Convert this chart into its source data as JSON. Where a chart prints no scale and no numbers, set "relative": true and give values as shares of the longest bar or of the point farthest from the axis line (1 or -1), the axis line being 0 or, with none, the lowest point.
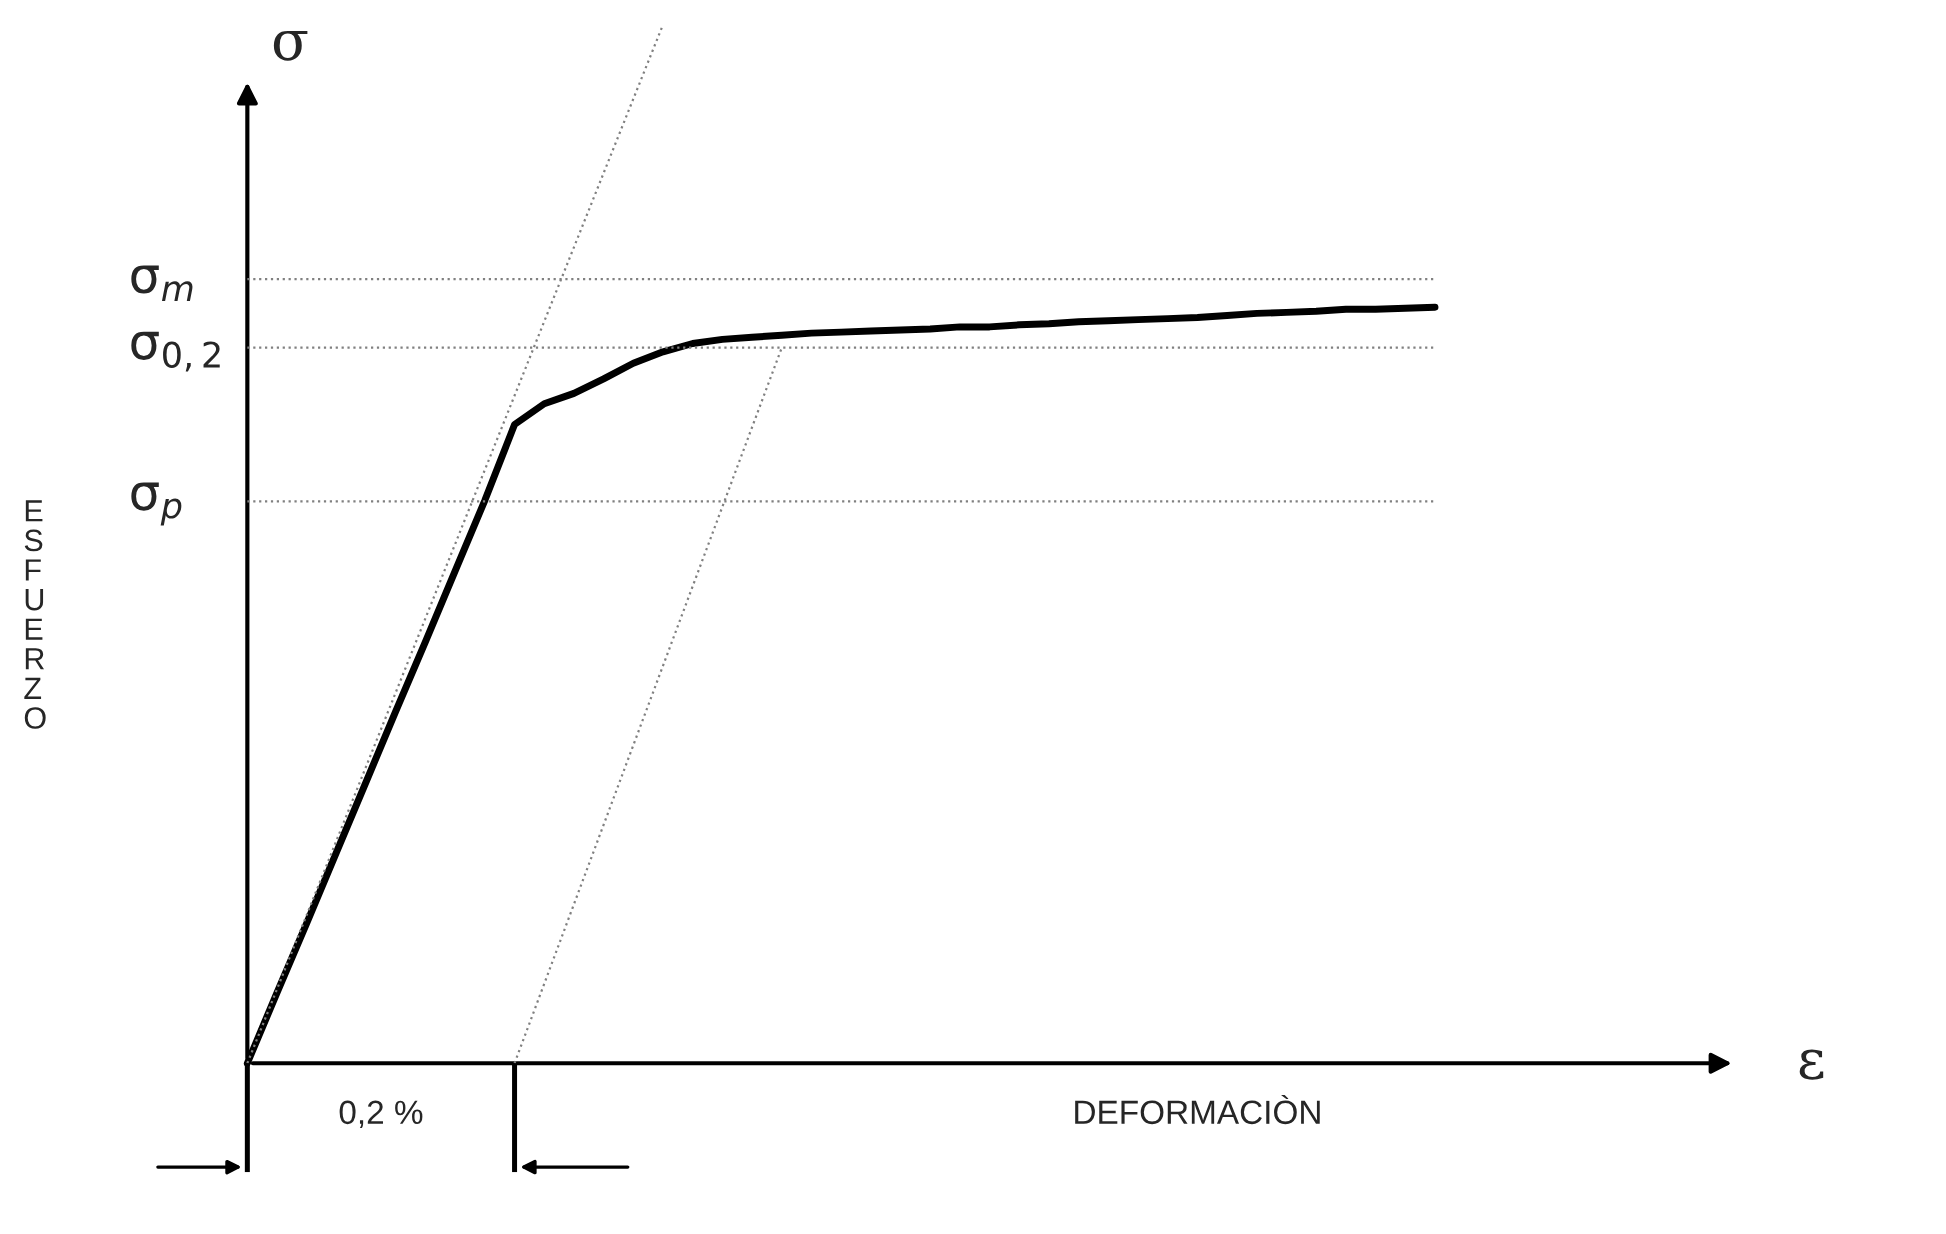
{
  "chart_data": {
    "type": "line",
    "relative": true,
    "marker": "none",
    "categories": [
      null,
      null,
      null,
      null,
      null,
      null,
      null,
      null,
      null,
      null,
      null,
      null,
      null,
      null,
      null,
      null,
      null,
      null,
      null,
      null,
      null,
      null,
      null,
      null,
      null,
      null,
      null,
      null,
      null,
      null,
      null,
      null,
      null,
      null,
      null,
      null,
      null,
      null,
      null,
      null,
      null
    ],
    "series": [
      {
        "color": "#000000",
        "line_style": "solid",
        "values": [
          0,
          0.068,
          0.135,
          0.203,
          0.271,
          0.339,
          0.406,
          0.474,
          0.542,
          0.615,
          0.635,
          0.645,
          0.659,
          0.674,
          0.685,
          0.693,
          0.697,
          0.699,
          0.701,
          0.703,
          0.704,
          0.705,
          0.706,
          0.707,
          0.709,
          0.709,
          0.711,
          0.712,
          0.714,
          0.715,
          0.716,
          0.717,
          0.718,
          0.72,
          0.722,
          0.723,
          0.724,
          0.726,
          0.726,
          0.727,
          0.728
        ]
      },
      {
        "color": "#808080",
        "line_style": "dotted",
        "values": [
          0,
          null,
          null,
          null,
          null,
          null,
          null,
          null,
          null,
          null,
          null,
          null,
          null,
          null,
          1,
          null,
          null,
          null,
          null,
          null,
          null,
          null,
          null,
          null,
          null,
          null,
          null,
          null,
          null,
          null,
          null,
          null,
          null,
          null,
          null,
          null,
          null,
          null,
          null,
          null,
          null
        ]
      },
      {
        "color": "#808080",
        "line_style": "dotted",
        "values": [
          null,
          null,
          null,
          null,
          null,
          null,
          null,
          null,
          null,
          0,
          null,
          null,
          null,
          null,
          null,
          null,
          null,
          null,
          0.689,
          null,
          null,
          null,
          null,
          null,
          null,
          null,
          null,
          null,
          null,
          null,
          null,
          null,
          null,
          null,
          null,
          null,
          null,
          null,
          null,
          null,
          null
        ]
      }
    ],
    "ref_lines": [
      {
        "axis": "y",
        "value": 0.755,
        "label": "σ$_{m}$",
        "color": "#808080",
        "line_style": "dotted"
      },
      {
        "axis": "y",
        "value": 0.689,
        "label": "σ$_{0,2}$",
        "color": "#808080",
        "line_style": "dotted"
      },
      {
        "axis": "y",
        "value": 0.541,
        "label": "σ$_{p}$",
        "color": "#808080",
        "line_style": "dotted"
      }
    ],
    "annotations": [
      "ESFUERZO",
      "DEFORMACIÒN",
      "0,2 %",
      "ε",
      "σ"
    ]
  }
}
